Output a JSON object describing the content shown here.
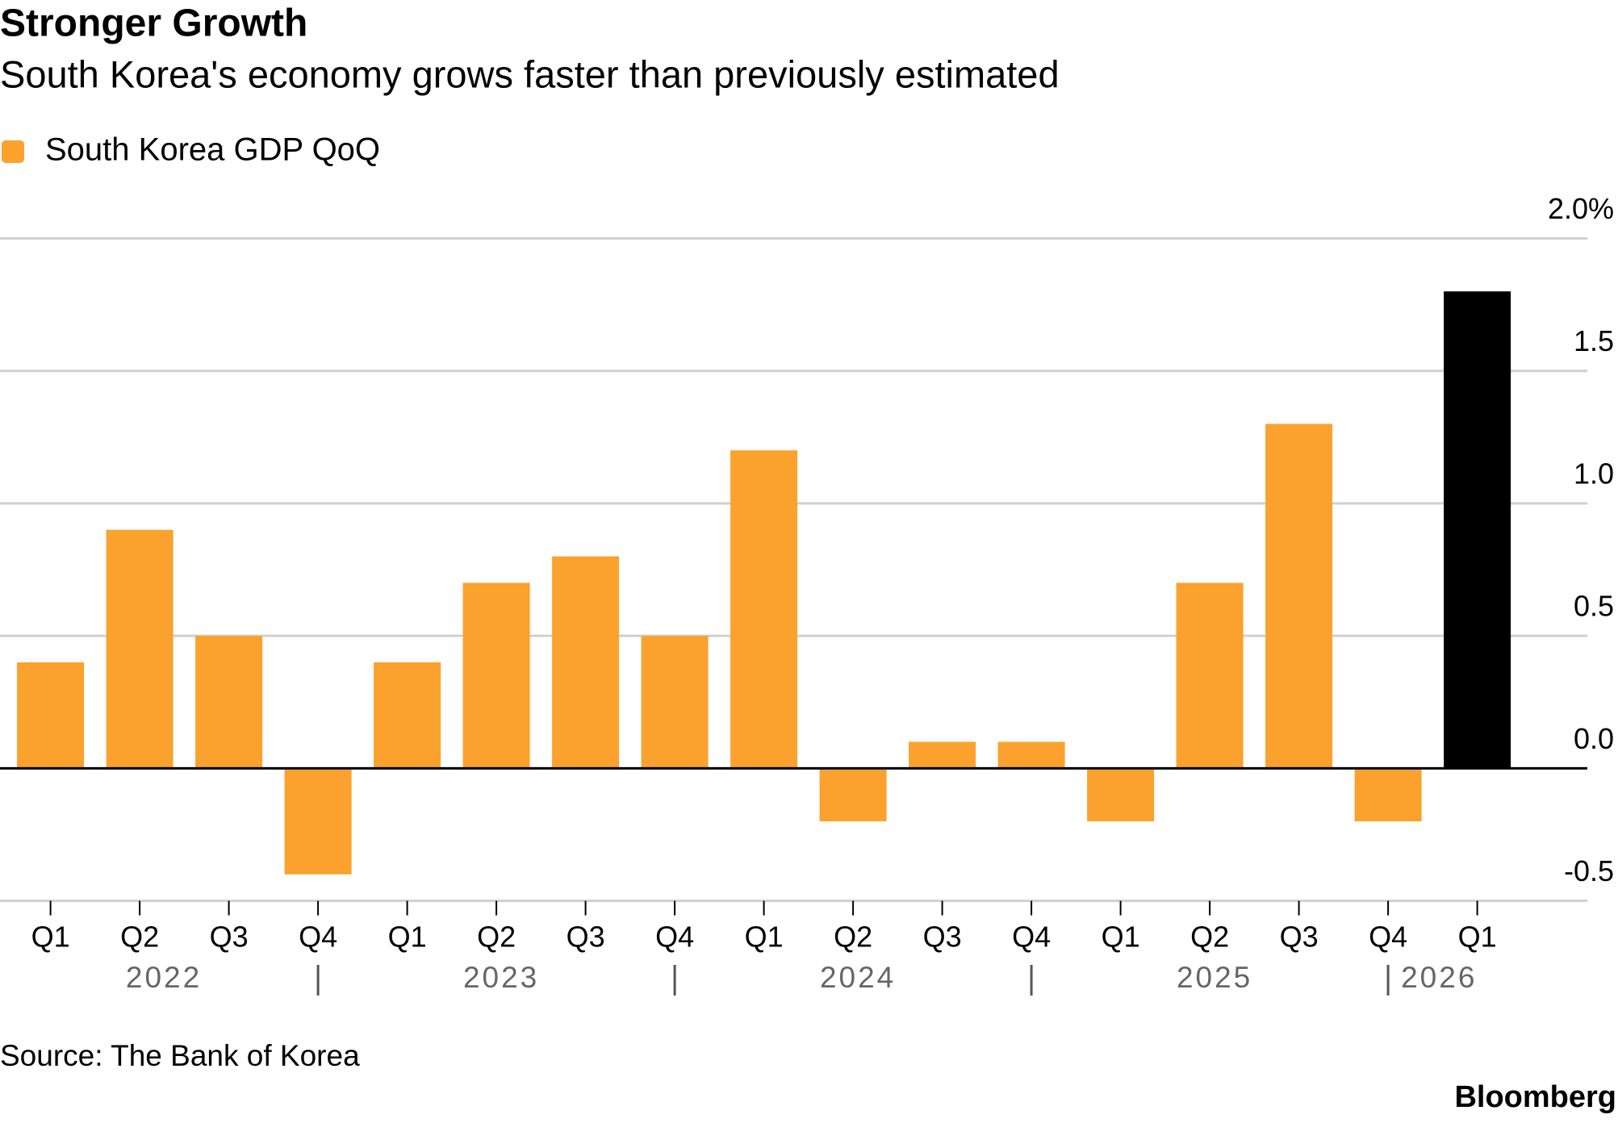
{
  "chart_data": {
    "type": "bar",
    "title": "Stronger Growth",
    "subtitle": "South Korea's economy grows faster than previously estimated",
    "categories": [
      "Q1",
      "Q2",
      "Q3",
      "Q4",
      "Q1",
      "Q2",
      "Q3",
      "Q4",
      "Q1",
      "Q2",
      "Q3",
      "Q4",
      "Q1",
      "Q2",
      "Q3",
      "Q4",
      "Q1"
    ],
    "years": [
      "2022",
      "2023",
      "2024",
      "2025",
      "2026"
    ],
    "series": [
      {
        "name": "South Korea GDP QoQ",
        "color": "#fba12e",
        "values": [
          0.4,
          0.9,
          0.5,
          -0.4,
          0.4,
          0.7,
          0.8,
          0.5,
          1.2,
          -0.2,
          0.1,
          0.1,
          -0.2,
          0.7,
          1.3,
          -0.2,
          1.8
        ],
        "colors": [
          "#fba12e",
          "#fba12e",
          "#fba12e",
          "#fba12e",
          "#fba12e",
          "#fba12e",
          "#fba12e",
          "#fba12e",
          "#fba12e",
          "#fba12e",
          "#fba12e",
          "#fba12e",
          "#fba12e",
          "#fba12e",
          "#fba12e",
          "#fba12e",
          "#000000"
        ]
      }
    ],
    "ylim": [
      -0.5,
      2.0
    ],
    "yticks": [
      -0.5,
      {
        "value": 0,
        "label": "0.0"
      },
      0.5,
      {
        "value": 1,
        "label": "1.0"
      },
      1.5,
      {
        "value": 2,
        "label": "2.0%"
      }
    ],
    "grid": true,
    "source": "Source: The Bank of Korea",
    "brand": "Bloomberg"
  }
}
